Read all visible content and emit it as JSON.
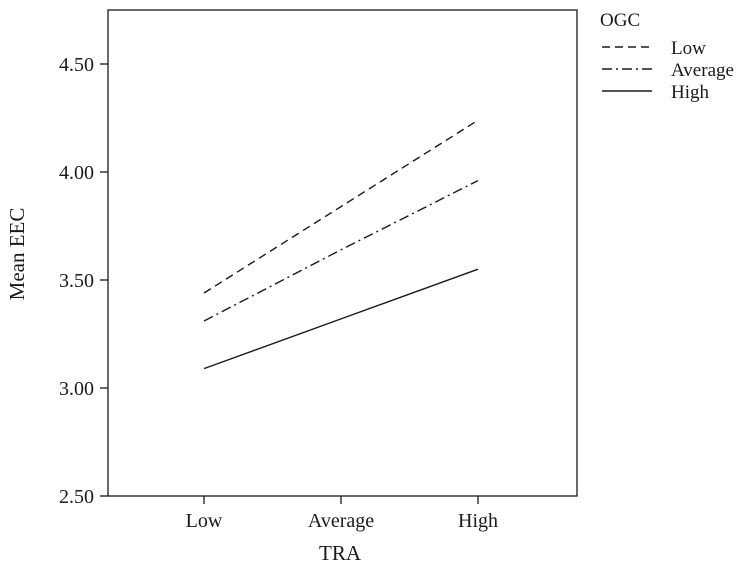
{
  "chart_data": {
    "type": "line",
    "title": "",
    "xlabel": "TRA",
    "ylabel": "Mean EEC",
    "categories": [
      "Low",
      "Average",
      "High"
    ],
    "ylim": [
      2.5,
      4.75
    ],
    "yticks": [
      "2.50",
      "3.00",
      "3.50",
      "4.00",
      "4.50"
    ],
    "grid": false,
    "legend": {
      "title": "OGC",
      "placement": "top-right, outside plot"
    },
    "series": [
      {
        "name": "Low",
        "dash": "dashed",
        "values": [
          3.44,
          3.84,
          4.24
        ]
      },
      {
        "name": "Average",
        "dash": "dash-dot",
        "values": [
          3.31,
          3.64,
          3.96
        ]
      },
      {
        "name": "High",
        "dash": "solid",
        "values": [
          3.09,
          3.32,
          3.55
        ]
      }
    ],
    "line_color": "#1a1a1a"
  }
}
